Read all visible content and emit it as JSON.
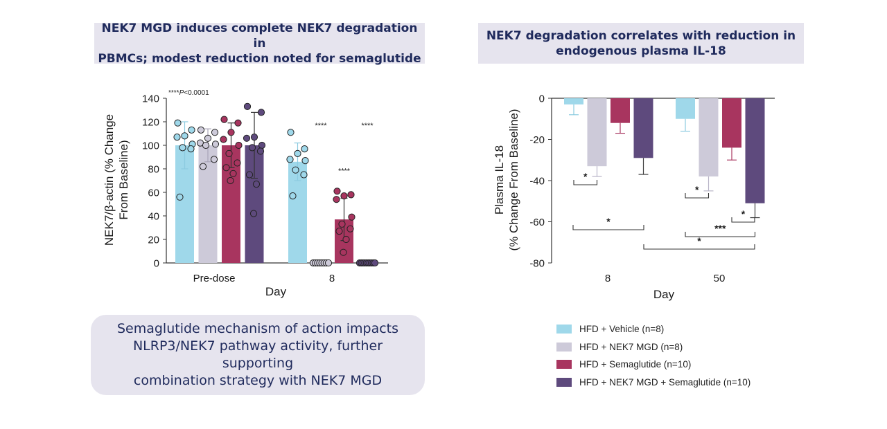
{
  "left_banner": {
    "line1": "NEK7 MGD induces complete NEK7 degradation in",
    "line2": "PBMCs; modest reduction noted for semaglutide"
  },
  "right_banner": {
    "line1": "NEK7 degradation correlates with reduction in",
    "line2": "endogenous plasma IL-18"
  },
  "callout": {
    "line1": "Semaglutide mechanism of action impacts",
    "line2": "NLRP3/NEK7 pathway activity, further supporting",
    "line3": "combination strategy with NEK7 MGD"
  },
  "colors": {
    "vehicle": "#9fd8ea",
    "mgd": "#cdcad9",
    "sema": "#a8355f",
    "combo": "#5e4a7d"
  },
  "legend": [
    {
      "label": "HFD + Vehicle (n=8)",
      "color": "#9fd8ea"
    },
    {
      "label": "HFD + NEK7 MGD (n=8)",
      "color": "#cdcad9"
    },
    {
      "label": "HFD + Semaglutide (n=10)",
      "color": "#a8355f"
    },
    {
      "label": "HFD + NEK7 MGD + Semaglutide (n=10)",
      "color": "#5e4a7d"
    }
  ],
  "chart_data": [
    {
      "type": "bar",
      "title": "",
      "annotation": {
        "prefix": "****",
        "italic": "P",
        "suffix": "<0.0001"
      },
      "xlabel": "Day",
      "ylabel_line1": "NEK7/β-actin (% Change",
      "ylabel_line2": "From Baseline)",
      "ylim": [
        0,
        140
      ],
      "yticks": [
        0,
        20,
        40,
        60,
        80,
        100,
        120,
        140
      ],
      "ytick_labels": [
        "0",
        "20",
        "40",
        "60",
        "80",
        "100",
        "120",
        "140"
      ],
      "categories": [
        "Pre-dose",
        "8"
      ],
      "series": [
        {
          "name": "HFD + Vehicle",
          "values": [
            100,
            86
          ],
          "errors": [
            20,
            16
          ],
          "points": [
            [
              119,
              113,
              108,
              107,
              101,
              98,
              97,
              56
            ],
            [
              111,
              97,
              93,
              88,
              87,
              79,
              75,
              57
            ]
          ]
        },
        {
          "name": "HFD + NEK7 MGD",
          "values": [
            100,
            0
          ],
          "errors": [
            14,
            0
          ],
          "points": [
            [
              113,
              111,
              106,
              102,
              101,
              100,
              88,
              82
            ],
            [
              0,
              0,
              0,
              0,
              0,
              0,
              0,
              0
            ]
          ]
        },
        {
          "name": "HFD + Semaglutide",
          "values": [
            100,
            37
          ],
          "errors": [
            19,
            18
          ],
          "points": [
            [
              122,
              119,
              111,
              105,
              100,
              93,
              85,
              81,
              76,
              70
            ],
            [
              61,
              58,
              57,
              54,
              39,
              33,
              29,
              27,
              20,
              9
            ]
          ]
        },
        {
          "name": "HFD + NEK7 MGD + Semaglutide",
          "values": [
            100,
            0
          ],
          "errors": [
            28,
            0
          ],
          "points": [
            [
              133,
              128,
              107,
              106,
              100,
              98,
              95,
              75,
              67,
              42
            ],
            [
              0,
              0,
              0,
              0,
              0,
              0,
              0,
              0,
              0,
              0
            ]
          ]
        }
      ],
      "significance": [
        {
          "category": "8",
          "series": "HFD + NEK7 MGD",
          "label": "****"
        },
        {
          "category": "8",
          "series": "HFD + Semaglutide",
          "label": "****"
        },
        {
          "category": "8",
          "series": "HFD + NEK7 MGD + Semaglutide",
          "label": "****"
        }
      ]
    },
    {
      "type": "bar",
      "title": "",
      "xlabel": "Day",
      "ylabel_line1": "Plasma IL-18",
      "ylabel_line2": "(% Change From Baseline)",
      "ylim": [
        -80,
        0
      ],
      "yticks": [
        0,
        -20,
        -40,
        -60,
        -80
      ],
      "ytick_labels": [
        "0",
        "-20",
        "-40",
        "-60",
        "-80"
      ],
      "categories": [
        "8",
        "50"
      ],
      "series": [
        {
          "name": "HFD + Vehicle",
          "values": [
            -3,
            -10
          ],
          "errors": [
            5,
            6
          ]
        },
        {
          "name": "HFD + NEK7 MGD",
          "values": [
            -33,
            -38
          ],
          "errors": [
            5,
            7
          ]
        },
        {
          "name": "HFD + Semaglutide",
          "values": [
            -12,
            -24
          ],
          "errors": [
            5,
            6
          ]
        },
        {
          "name": "HFD + NEK7 MGD + Semaglutide",
          "values": [
            -29,
            -51
          ],
          "errors": [
            8,
            7
          ]
        }
      ],
      "comparisons": [
        {
          "from": [
            "8",
            "HFD + Vehicle"
          ],
          "to": [
            "8",
            "HFD + NEK7 MGD"
          ],
          "label": "*"
        },
        {
          "from": [
            "8",
            "HFD + Vehicle"
          ],
          "to": [
            "50",
            "HFD + Vehicle"
          ],
          "label": "*"
        },
        {
          "from": [
            "50",
            "HFD + Vehicle"
          ],
          "to": [
            "50",
            "HFD + NEK7 MGD"
          ],
          "label": "*"
        },
        {
          "from": [
            "50",
            "HFD + Semaglutide"
          ],
          "to": [
            "50",
            "HFD + NEK7 MGD + Semaglutide"
          ],
          "label": "*"
        },
        {
          "from": [
            "50",
            "HFD + Vehicle"
          ],
          "to": [
            "50",
            "HFD + NEK7 MGD + Semaglutide"
          ],
          "label": "***"
        },
        {
          "from": [
            "8",
            "HFD + NEK7 MGD + Semaglutide"
          ],
          "to": [
            "50",
            "HFD + NEK7 MGD + Semaglutide"
          ],
          "label": "*"
        }
      ]
    }
  ]
}
